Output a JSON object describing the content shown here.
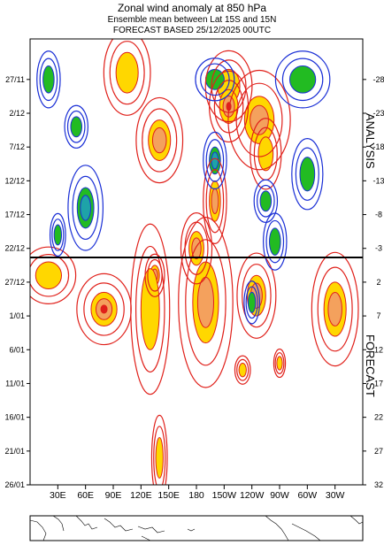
{
  "header": {
    "title": "Zonal wind anomaly at 850 hPa",
    "subtitle": "Ensemble mean between  Lat 15S and 15N",
    "forecast_line": "FORECAST  BASED 25/12/2025 00UTC"
  },
  "chart_data": {
    "type": "heatmap",
    "title": "Zonal wind anomaly at 850 hPa",
    "subtitle": "Ensemble mean between  Lat 15S and 15N",
    "x_tick_labels": [
      "30E",
      "60E",
      "90E",
      "120E",
      "150E",
      "180",
      "150W",
      "120W",
      "90W",
      "60W",
      "30W"
    ],
    "x_tick_lon": [
      30,
      60,
      90,
      120,
      150,
      180,
      210,
      240,
      270,
      300,
      330
    ],
    "xlim": [
      0,
      360
    ],
    "y_tick_labels": [
      "27/11",
      "2/12",
      "7/12",
      "12/12",
      "17/12",
      "22/12",
      "27/12",
      "1/01",
      "6/01",
      "11/01",
      "16/01",
      "21/01",
      "26/01"
    ],
    "y_tick_day": [
      2,
      7,
      12,
      17,
      22,
      27,
      32,
      37,
      42,
      47,
      52,
      57,
      62
    ],
    "right_tick_labels": [
      "-28",
      "-23",
      "-18",
      "-13",
      "-8",
      "-3",
      "2",
      "7",
      "12",
      "17",
      "22",
      "27",
      "32"
    ],
    "right_tick_day": [
      2,
      7,
      12,
      17,
      22,
      27,
      32,
      37,
      42,
      47,
      52,
      57,
      62
    ],
    "ylim": [
      -4,
      62
    ],
    "forecast_start_day": 30,
    "section_labels": {
      "analysis": "ANALYSIS",
      "forecast": "FORECAST"
    },
    "colors": {
      "positive_line": "#e0201a",
      "negative_line": "#1a2fd6",
      "pos_fill_1": "#ffd700",
      "pos_fill_2": "#f4a15d",
      "pos_fill_3": "#e0201a",
      "neg_fill_1": "#22bb22",
      "neg_fill_2": "#1ea3a8"
    },
    "positive_anomalies": [
      {
        "lon": 248,
        "day": 8,
        "rx": 16,
        "ry": 3.5,
        "level": 2
      },
      {
        "lon": 140,
        "day": 11,
        "rx": 12,
        "ry": 3,
        "level": 2
      },
      {
        "lon": 105,
        "day": 1,
        "rx": 12,
        "ry": 3,
        "level": 1
      },
      {
        "lon": 215,
        "day": 3,
        "rx": 12,
        "ry": 2.5,
        "level": 1
      },
      {
        "lon": 215,
        "day": 6,
        "rx": 10,
        "ry": 2.5,
        "level": 3
      },
      {
        "lon": 255,
        "day": 13,
        "rx": 8,
        "ry": 2.5,
        "level": 1
      },
      {
        "lon": 200,
        "day": 20,
        "rx": 6,
        "ry": 3,
        "level": 2
      },
      {
        "lon": 180,
        "day": 27,
        "rx": 8,
        "ry": 2.5,
        "level": 2
      },
      {
        "lon": 135,
        "day": 31,
        "rx": 5,
        "ry": 1.5,
        "level": 2
      },
      {
        "lon": 20,
        "day": 31,
        "rx": 14,
        "ry": 2,
        "level": 1
      },
      {
        "lon": 80,
        "day": 36,
        "rx": 14,
        "ry": 2.5,
        "level": 3
      },
      {
        "lon": 130,
        "day": 36,
        "rx": 10,
        "ry": 6,
        "level": 1
      },
      {
        "lon": 190,
        "day": 35,
        "rx": 14,
        "ry": 6,
        "level": 2
      },
      {
        "lon": 245,
        "day": 34,
        "rx": 10,
        "ry": 3,
        "level": 2
      },
      {
        "lon": 330,
        "day": 36,
        "rx": 12,
        "ry": 4,
        "level": 2
      },
      {
        "lon": 230,
        "day": 45,
        "rx": 4,
        "ry": 1,
        "level": 1
      },
      {
        "lon": 270,
        "day": 44,
        "rx": 3,
        "ry": 1,
        "level": 1
      },
      {
        "lon": 140,
        "day": 58,
        "rx": 4,
        "ry": 3,
        "level": 1
      }
    ],
    "negative_anomalies": [
      {
        "lon": 20,
        "day": 2,
        "rx": 6,
        "ry": 2,
        "level": 1
      },
      {
        "lon": 200,
        "day": 2,
        "rx": 10,
        "ry": 1.5,
        "level": 1
      },
      {
        "lon": 295,
        "day": 2,
        "rx": 14,
        "ry": 2,
        "level": 1
      },
      {
        "lon": 50,
        "day": 9,
        "rx": 6,
        "ry": 1.5,
        "level": 1
      },
      {
        "lon": 60,
        "day": 21,
        "rx": 9,
        "ry": 3,
        "level": 2
      },
      {
        "lon": 200,
        "day": 14,
        "rx": 6,
        "ry": 2,
        "level": 2
      },
      {
        "lon": 300,
        "day": 16,
        "rx": 8,
        "ry": 2.5,
        "level": 1
      },
      {
        "lon": 255,
        "day": 20,
        "rx": 6,
        "ry": 1.5,
        "level": 1
      },
      {
        "lon": 30,
        "day": 25,
        "rx": 4,
        "ry": 1.5,
        "level": 1
      },
      {
        "lon": 265,
        "day": 26,
        "rx": 6,
        "ry": 2,
        "level": 1
      },
      {
        "lon": 240,
        "day": 35,
        "rx": 4,
        "ry": 1.5,
        "level": 1
      }
    ]
  },
  "map_strip": {
    "label": ""
  }
}
